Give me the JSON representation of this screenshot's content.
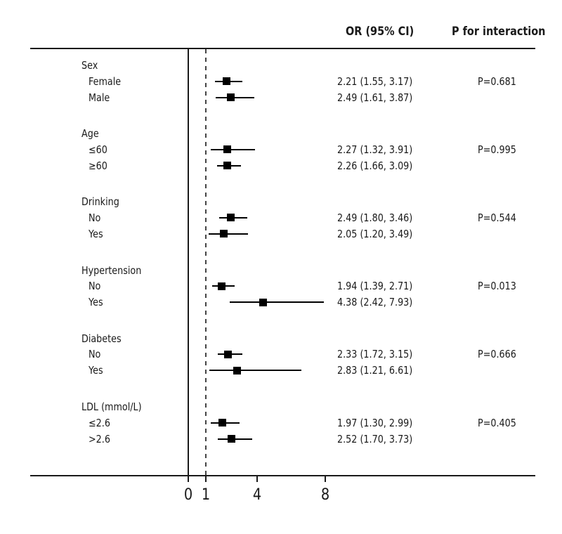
{
  "figure": {
    "background": "#ffffff",
    "text_color": "#1a1a1a",
    "marker_color": "#000000",
    "reference_line_color": "#444444"
  },
  "header": {
    "or_col": "OR (95% CI)",
    "p_col": "P for interaction"
  },
  "chart_data": {
    "type": "forest",
    "x_axis": {
      "scale": "linear",
      "ticks": [
        0,
        1,
        4,
        8
      ],
      "reference_line": 1,
      "zero_line": 0,
      "range": [
        0,
        20
      ]
    },
    "columns": {
      "estimate": "OR (95% CI)",
      "p_interaction": "P for interaction"
    },
    "groups": [
      {
        "label": "Sex",
        "p_interaction": "P=0.681",
        "rows": [
          {
            "label": "Female",
            "or": 2.21,
            "lo": 1.55,
            "hi": 3.17,
            "ci_text": "2.21 (1.55, 3.17)"
          },
          {
            "label": "Male",
            "or": 2.49,
            "lo": 1.61,
            "hi": 3.87,
            "ci_text": "2.49 (1.61, 3.87)"
          }
        ]
      },
      {
        "label": "Age",
        "p_interaction": "P=0.995",
        "rows": [
          {
            "label": "≤60",
            "or": 2.27,
            "lo": 1.32,
            "hi": 3.91,
            "ci_text": "2.27 (1.32, 3.91)"
          },
          {
            "label": "≥60",
            "or": 2.26,
            "lo": 1.66,
            "hi": 3.09,
            "ci_text": "2.26 (1.66, 3.09)"
          }
        ]
      },
      {
        "label": "Drinking",
        "p_interaction": "P=0.544",
        "rows": [
          {
            "label": "No",
            "or": 2.49,
            "lo": 1.8,
            "hi": 3.46,
            "ci_text": "2.49 (1.80, 3.46)"
          },
          {
            "label": "Yes",
            "or": 2.05,
            "lo": 1.2,
            "hi": 3.49,
            "ci_text": "2.05 (1.20, 3.49)"
          }
        ]
      },
      {
        "label": "Hypertension",
        "p_interaction": "P=0.013",
        "rows": [
          {
            "label": "No",
            "or": 1.94,
            "lo": 1.39,
            "hi": 2.71,
            "ci_text": "1.94 (1.39, 2.71)"
          },
          {
            "label": "Yes",
            "or": 4.38,
            "lo": 2.42,
            "hi": 7.93,
            "ci_text": "4.38 (2.42, 7.93)"
          }
        ]
      },
      {
        "label": "Diabetes",
        "p_interaction": "P=0.666",
        "rows": [
          {
            "label": "No",
            "or": 2.33,
            "lo": 1.72,
            "hi": 3.15,
            "ci_text": "2.33 (1.72, 3.15)"
          },
          {
            "label": "Yes",
            "or": 2.83,
            "lo": 1.21,
            "hi": 6.61,
            "ci_text": "2.83 (1.21, 6.61)"
          }
        ]
      },
      {
        "label": "LDL (mmol/L)",
        "p_interaction": "P=0.405",
        "rows": [
          {
            "label": "≤2.6",
            "or": 1.97,
            "lo": 1.3,
            "hi": 2.99,
            "ci_text": "1.97 (1.30, 2.99)"
          },
          {
            "label": ">2.6",
            "or": 2.52,
            "lo": 1.7,
            "hi": 3.73,
            "ci_text": "2.52 (1.70, 3.73)"
          }
        ]
      }
    ]
  }
}
